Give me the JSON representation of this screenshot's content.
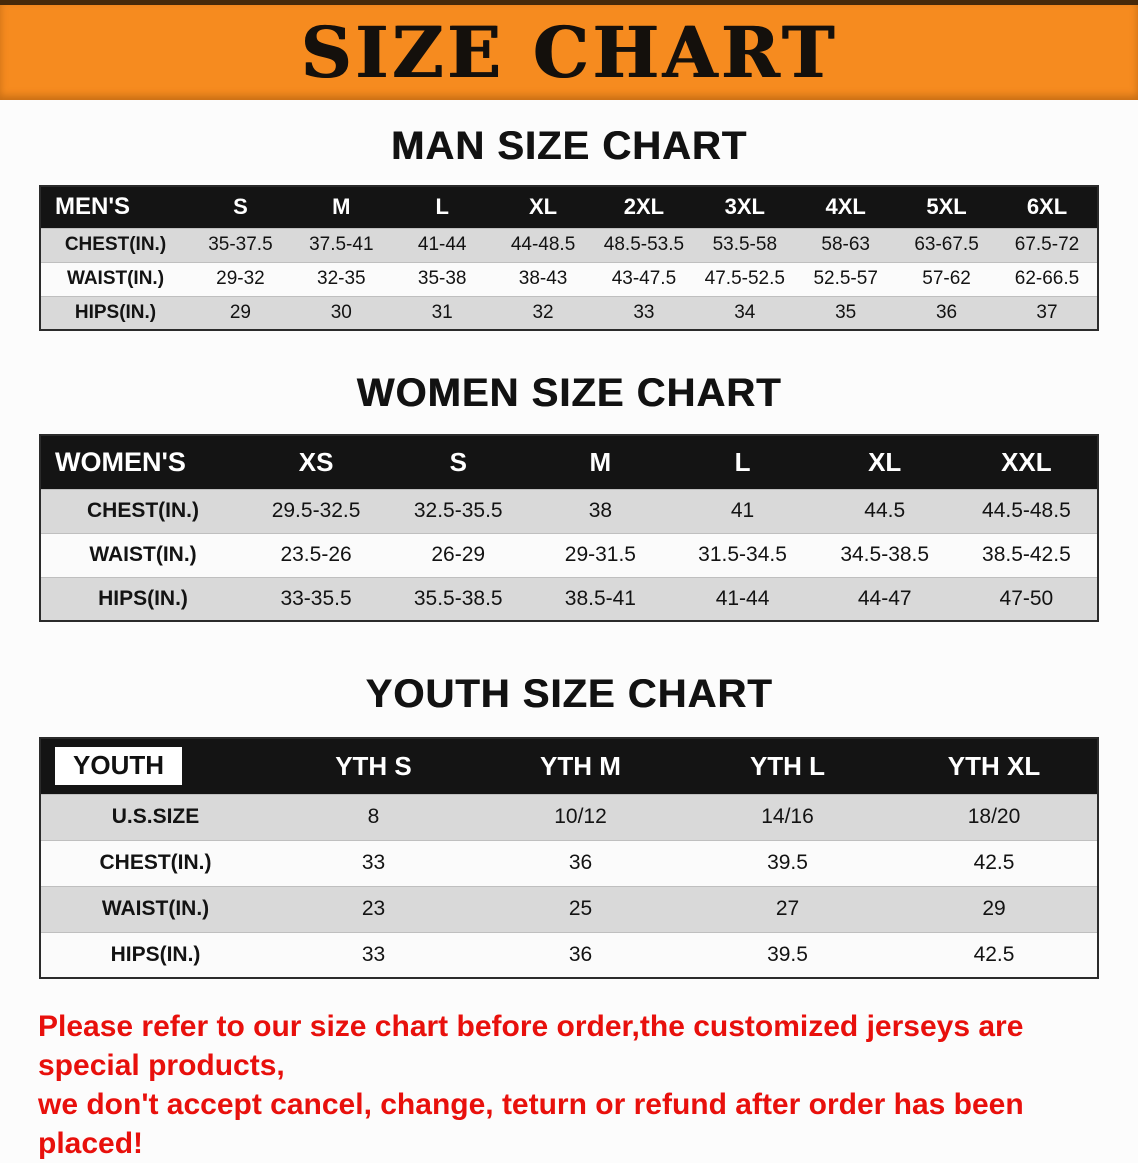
{
  "banner": {
    "title": "SIZE CHART"
  },
  "colors": {
    "banner_bg": "#f68b1f",
    "header_bar": "#141414",
    "row_alt": "#d9d9d9",
    "disclaimer": "#e8100c"
  },
  "sections": [
    {
      "heading": "MAN SIZE CHART",
      "label_header": "MEN'S",
      "columns": [
        "S",
        "M",
        "L",
        "XL",
        "2XL",
        "3XL",
        "4XL",
        "5XL",
        "6XL"
      ],
      "rows": [
        {
          "label": "CHEST(IN.)",
          "values": [
            "35-37.5",
            "37.5-41",
            "41-44",
            "44-48.5",
            "48.5-53.5",
            "53.5-58",
            "58-63",
            "63-67.5",
            "67.5-72"
          ]
        },
        {
          "label": "WAIST(IN.)",
          "values": [
            "29-32",
            "32-35",
            "35-38",
            "38-43",
            "43-47.5",
            "47.5-52.5",
            "52.5-57",
            "57-62",
            "62-66.5"
          ]
        },
        {
          "label": "HIPS(IN.)",
          "values": [
            "29",
            "30",
            "31",
            "32",
            "33",
            "34",
            "35",
            "36",
            "37"
          ]
        }
      ]
    },
    {
      "heading": "WOMEN SIZE CHART",
      "label_header": "WOMEN'S",
      "columns": [
        "XS",
        "S",
        "M",
        "L",
        "XL",
        "XXL"
      ],
      "rows": [
        {
          "label": "CHEST(IN.)",
          "values": [
            "29.5-32.5",
            "32.5-35.5",
            "38",
            "41",
            "44.5",
            "44.5-48.5"
          ]
        },
        {
          "label": "WAIST(IN.)",
          "values": [
            "23.5-26",
            "26-29",
            "29-31.5",
            "31.5-34.5",
            "34.5-38.5",
            "38.5-42.5"
          ]
        },
        {
          "label": "HIPS(IN.)",
          "values": [
            "33-35.5",
            "35.5-38.5",
            "38.5-41",
            "41-44",
            "44-47",
            "47-50"
          ]
        }
      ]
    },
    {
      "heading": "YOUTH SIZE CHART",
      "label_header": "YOUTH",
      "columns": [
        "YTH S",
        "YTH M",
        "YTH L",
        "YTH XL"
      ],
      "rows": [
        {
          "label": "U.S.SIZE",
          "values": [
            "8",
            "10/12",
            "14/16",
            "18/20"
          ]
        },
        {
          "label": "CHEST(IN.)",
          "values": [
            "33",
            "36",
            "39.5",
            "42.5"
          ]
        },
        {
          "label": "WAIST(IN.)",
          "values": [
            "23",
            "25",
            "27",
            "29"
          ]
        },
        {
          "label": "HIPS(IN.)",
          "values": [
            "33",
            "36",
            "39.5",
            "42.5"
          ]
        }
      ]
    }
  ],
  "disclaimer": {
    "line1": "Please refer to our size chart before order,the customized jerseys are special products,",
    "line2": "we don't accept cancel, change, teturn or refund after order has been placed!"
  }
}
